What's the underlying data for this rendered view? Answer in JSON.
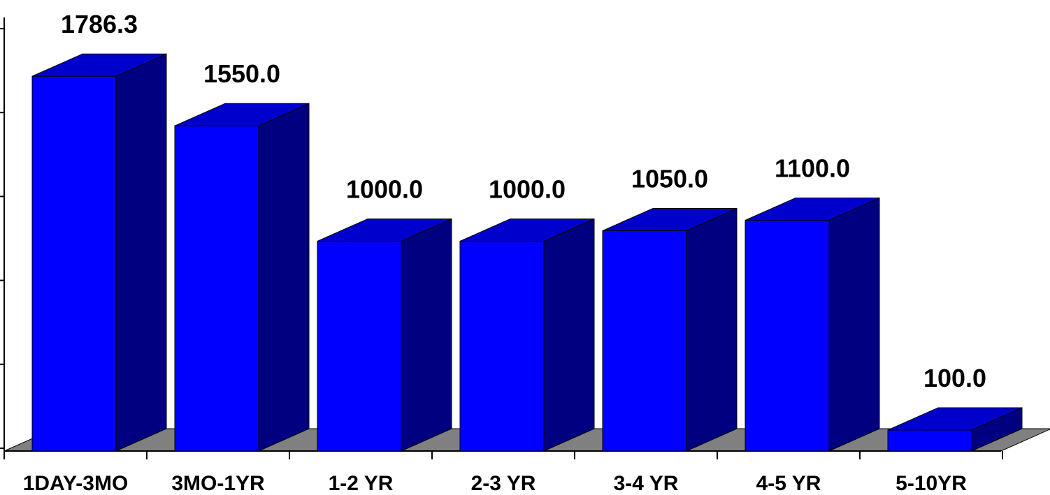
{
  "chart_data": {
    "type": "bar",
    "style": "3d",
    "categories": [
      "1DAY-3MO",
      "3MO-1YR",
      "1-2 YR",
      "2-3 YR",
      "3-4 YR",
      "4-5 YR",
      "5-10YR"
    ],
    "values": [
      1786.3,
      1550.0,
      1000.0,
      1000.0,
      1050.0,
      1100.0,
      100.0
    ],
    "value_labels": [
      "1786.3",
      "1550.0",
      "1000.0",
      "1000.0",
      "1050.0",
      "1100.0",
      "100.0"
    ],
    "ylim": [
      0,
      2000
    ],
    "y_major_step": 400,
    "title": "",
    "xlabel": "",
    "ylabel": "",
    "grid": false,
    "legend": "none",
    "colors": {
      "bar_front": "#0000ff",
      "bar_top": "#0000cc",
      "bar_side": "#000080",
      "floor": "#808080",
      "outline": "#000000"
    }
  }
}
